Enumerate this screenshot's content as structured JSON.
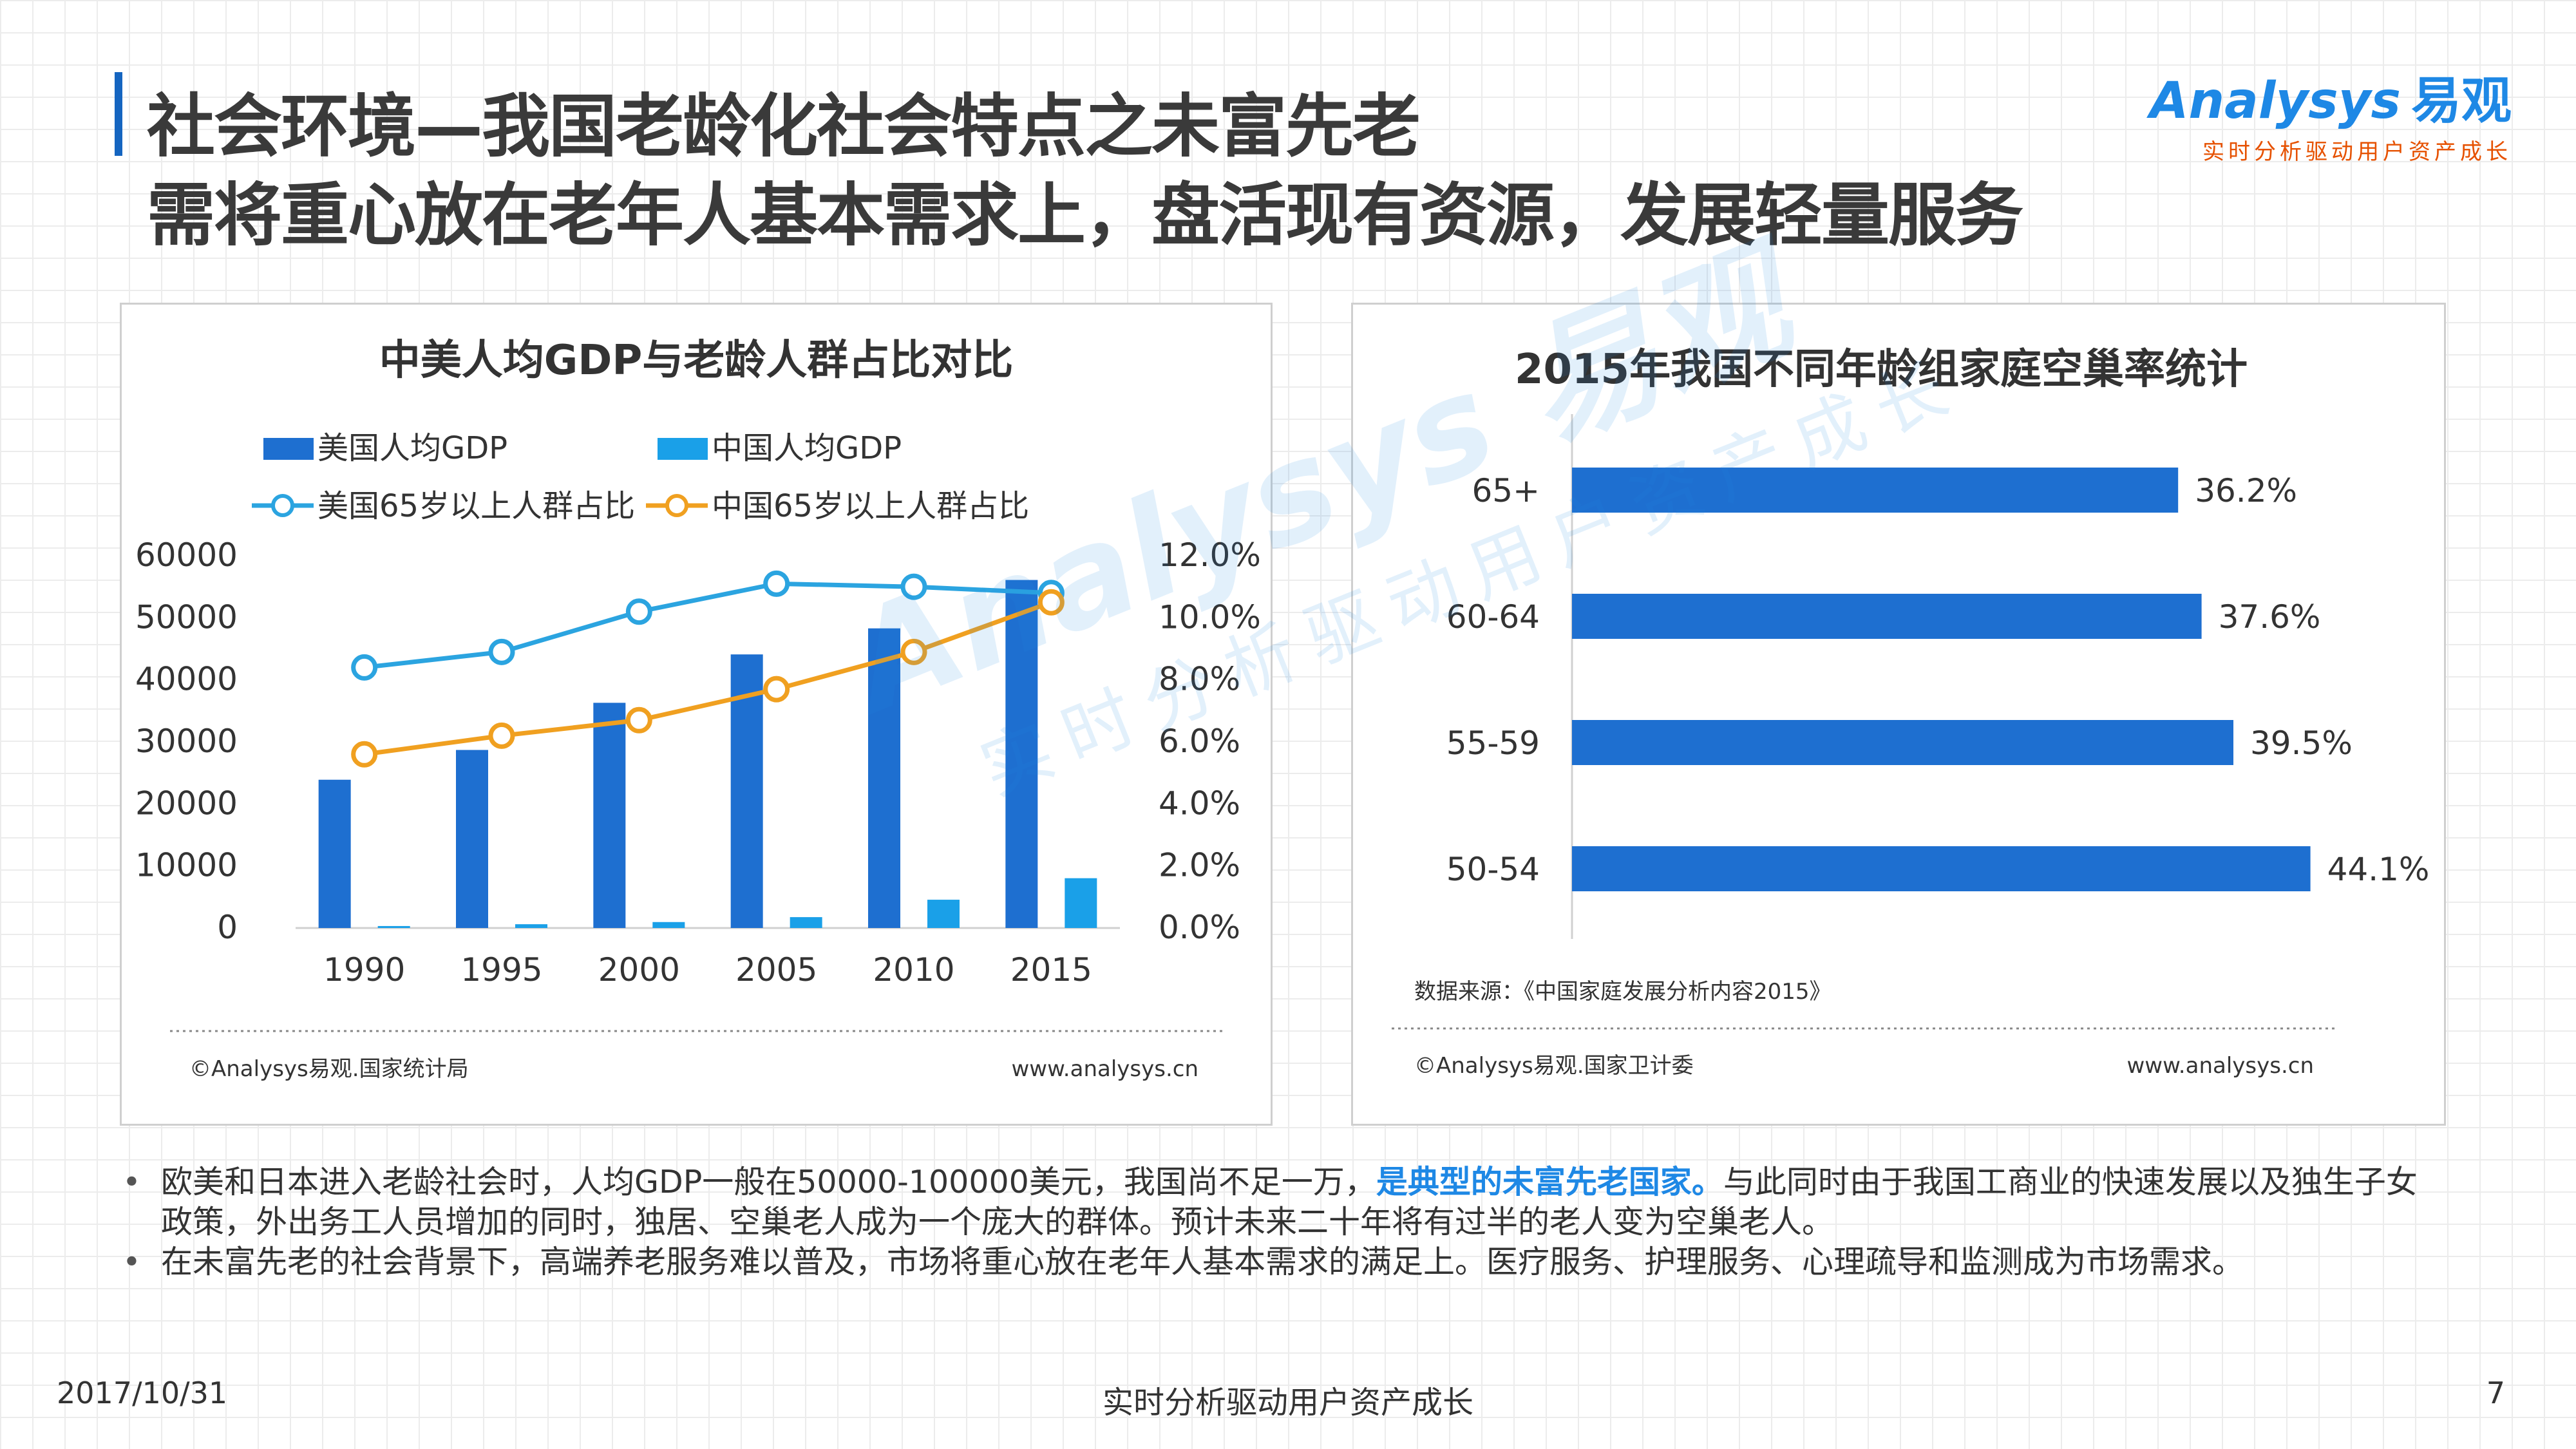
{
  "header": {
    "title_line1": "社会环境—我国老龄化社会特点之未富先老",
    "title_line2": "需将重心放在老年人基本需求上，盘活现有资源，发展轻量服务"
  },
  "logo": {
    "brand": "Analysys",
    "brand_cn": "易观",
    "tagline": "实时分析驱动用户资产成长"
  },
  "colors": {
    "accent_blue": "#1565c0",
    "usa_gdp": "#1e6fd0",
    "china_gdp": "#1aa0e8",
    "usa_line": "#2ba4e0",
    "china_line": "#f0a020",
    "highlight": "#1e88e5"
  },
  "left_panel": {
    "source": "©Analysys易观.国家统计局",
    "url": "www.analysys.cn"
  },
  "right_panel": {
    "data_source": "数据来源：《中国家庭发展分析内容2015》",
    "source": "©Analysys易观.国家卫计委",
    "url": "www.analysys.cn"
  },
  "watermark": {
    "brand": "Analysys 易观",
    "tagline": "实时分析驱动用户资产成长"
  },
  "chart_data": [
    {
      "type": "bar",
      "title": "中美人均GDP与老龄人群占比对比",
      "categories": [
        "1990",
        "1995",
        "2000",
        "2005",
        "2010",
        "2015"
      ],
      "series": [
        {
          "name": "美国人均GDP",
          "kind": "bar",
          "axis": "left",
          "values": [
            23900,
            28700,
            36300,
            44100,
            48300,
            56100
          ]
        },
        {
          "name": "中国人均GDP",
          "kind": "bar",
          "axis": "left",
          "values": [
            317,
            610,
            959,
            1753,
            4561,
            8028
          ]
        },
        {
          "name": "美国65岁以上人群占比",
          "kind": "line",
          "axis": "right",
          "values": [
            8.4,
            8.9,
            10.2,
            11.1,
            11.0,
            10.8
          ]
        },
        {
          "name": "中国65岁以上人群占比",
          "kind": "line",
          "axis": "right",
          "values": [
            5.6,
            6.2,
            6.7,
            7.7,
            8.9,
            10.5
          ]
        }
      ],
      "ylim_left": [
        0,
        60000
      ],
      "yticks_left": [
        "0",
        "10000",
        "20000",
        "30000",
        "40000",
        "50000",
        "60000"
      ],
      "ylim_right": [
        0,
        12
      ],
      "yticks_right": [
        "0.0%",
        "2.0%",
        "4.0%",
        "6.0%",
        "8.0%",
        "10.0%",
        "12.0%"
      ],
      "legend": "top",
      "grid": false
    },
    {
      "type": "bar",
      "orientation": "horizontal",
      "title": "2015年我国不同年龄组家庭空巢率统计",
      "categories": [
        "65+",
        "60-64",
        "55-59",
        "50-54"
      ],
      "values": [
        36.2,
        37.6,
        39.5,
        44.1
      ],
      "value_labels": [
        "36.2%",
        "37.6%",
        "39.5%",
        "44.1%"
      ],
      "xlim": [
        0,
        50
      ],
      "grid": false
    }
  ],
  "bullets": [
    {
      "before": "欧美和日本进入老龄社会时，人均GDP一般在50000-100000美元，我国尚不足一万，",
      "highlight": "是典型的未富先老国家。",
      "after": "与此同时由于我国工商业的快速发展以及独生子女政策，外出务工人员增加的同时，独居、空巢老人成为一个庞大的群体。预计未来二十年将有过半的老人变为空巢老人。"
    },
    {
      "text": "在未富先老的社会背景下，高端养老服务难以普及，市场将重心放在老年人基本需求的满足上。医疗服务、护理服务、心理疏导和监测成为市场需求。"
    }
  ],
  "footer": {
    "date": "2017/10/31",
    "center": "实时分析驱动用户资产成长",
    "page": "7"
  }
}
